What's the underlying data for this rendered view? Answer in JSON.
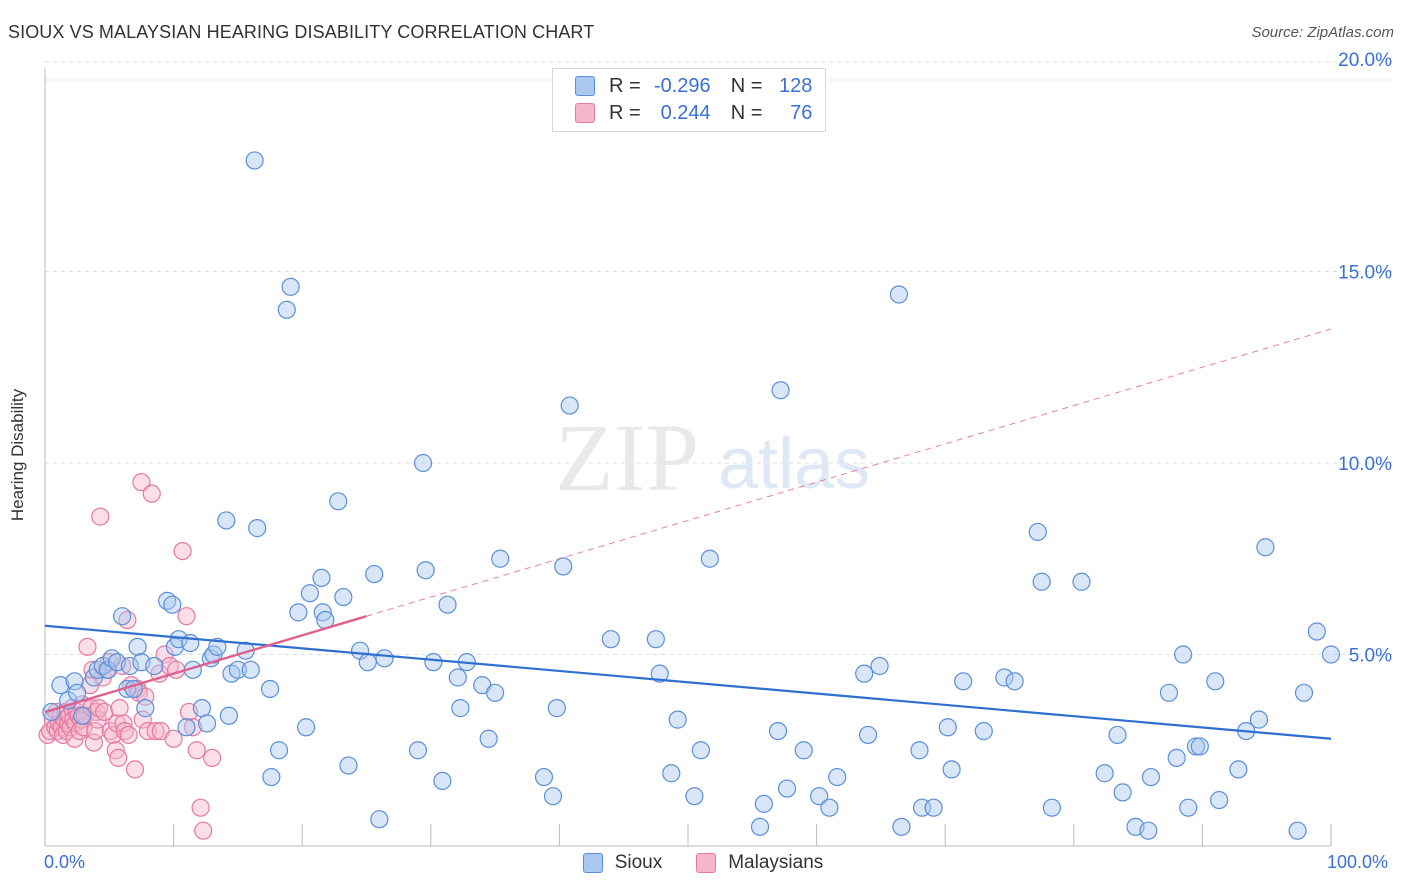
{
  "header": {
    "title": "SIOUX VS MALAYSIAN HEARING DISABILITY CORRELATION CHART",
    "source": "Source: ZipAtlas.com"
  },
  "watermark": {
    "zip": "ZIP",
    "atlas": "atlas"
  },
  "legend_top": {
    "rows": [
      {
        "r_label": "R =",
        "r_value": "-0.296",
        "n_label": "N =",
        "n_value": "128"
      },
      {
        "r_label": "R =",
        "r_value": "0.244",
        "n_label": "N =",
        "n_value": "76"
      }
    ]
  },
  "x_axis": {
    "min_label": "0.0%",
    "max_label": "100.0%"
  },
  "colors": {
    "sioux_fill": "#a9c8ef",
    "sioux_stroke": "#5b8fd9",
    "sioux_line": "#2e6fd0",
    "malay_fill": "#f6b6cb",
    "malay_stroke": "#e57aa0",
    "malay_line": "#e0608e",
    "axis_label": "#3a6fd6",
    "grid": "#dddddd"
  },
  "chart_data": {
    "type": "scatter",
    "title": "SIOUX VS MALAYSIAN HEARING DISABILITY CORRELATION CHART",
    "xlabel": "",
    "ylabel": "Hearing Disability",
    "xlim": [
      0,
      100
    ],
    "ylim": [
      0,
      20
    ],
    "y_ticks": [
      {
        "value": 5,
        "label": "5.0%"
      },
      {
        "value": 10,
        "label": "10.0%"
      },
      {
        "value": 15,
        "label": "15.0%"
      },
      {
        "value": 20,
        "label": "20.0%"
      }
    ],
    "x_ticks": [
      0,
      10,
      20,
      30,
      40,
      50,
      60,
      70,
      80,
      90,
      100
    ],
    "grid": "horizontal dashed",
    "legend": "top-center",
    "series": [
      {
        "name": "Sioux",
        "r": -0.296,
        "n": 128,
        "trend": {
          "x0": 0,
          "y0": 5.75,
          "x1": 100,
          "y1": 2.8
        },
        "points": [
          [
            0.5,
            3.5
          ],
          [
            1.2,
            4.2
          ],
          [
            1.8,
            3.8
          ],
          [
            2.3,
            4.3
          ],
          [
            2.5,
            4.0
          ],
          [
            2.9,
            3.4
          ],
          [
            3.8,
            4.4
          ],
          [
            4.1,
            4.6
          ],
          [
            4.5,
            4.7
          ],
          [
            4.9,
            4.6
          ],
          [
            5.2,
            4.9
          ],
          [
            5.6,
            4.8
          ],
          [
            6.0,
            6.0
          ],
          [
            6.4,
            4.1
          ],
          [
            6.6,
            4.7
          ],
          [
            6.9,
            4.1
          ],
          [
            7.2,
            5.2
          ],
          [
            7.5,
            4.8
          ],
          [
            7.8,
            3.6
          ],
          [
            8.5,
            4.7
          ],
          [
            9.5,
            6.4
          ],
          [
            9.9,
            6.3
          ],
          [
            10.1,
            5.2
          ],
          [
            10.4,
            5.4
          ],
          [
            11.0,
            3.1
          ],
          [
            11.3,
            5.3
          ],
          [
            11.5,
            4.6
          ],
          [
            12.2,
            3.6
          ],
          [
            12.6,
            3.2
          ],
          [
            12.9,
            4.9
          ],
          [
            13.1,
            5.0
          ],
          [
            13.4,
            5.2
          ],
          [
            14.1,
            8.5
          ],
          [
            14.3,
            3.4
          ],
          [
            14.5,
            4.5
          ],
          [
            15.0,
            4.6
          ],
          [
            15.6,
            5.1
          ],
          [
            16.0,
            4.6
          ],
          [
            16.3,
            17.9
          ],
          [
            16.5,
            8.3
          ],
          [
            17.5,
            4.1
          ],
          [
            17.6,
            1.8
          ],
          [
            18.2,
            2.5
          ],
          [
            18.8,
            14.0
          ],
          [
            19.1,
            14.6
          ],
          [
            19.7,
            6.1
          ],
          [
            20.3,
            3.1
          ],
          [
            20.6,
            6.6
          ],
          [
            21.5,
            7.0
          ],
          [
            21.6,
            6.1
          ],
          [
            21.8,
            5.9
          ],
          [
            22.8,
            9.0
          ],
          [
            23.2,
            6.5
          ],
          [
            23.6,
            2.1
          ],
          [
            24.5,
            5.1
          ],
          [
            25.1,
            4.8
          ],
          [
            25.6,
            7.1
          ],
          [
            26.0,
            0.7
          ],
          [
            26.4,
            4.9
          ],
          [
            29.0,
            2.5
          ],
          [
            29.4,
            10.0
          ],
          [
            29.6,
            7.2
          ],
          [
            30.2,
            4.8
          ],
          [
            30.9,
            1.7
          ],
          [
            31.3,
            6.3
          ],
          [
            32.1,
            4.4
          ],
          [
            32.3,
            3.6
          ],
          [
            32.8,
            4.8
          ],
          [
            34.0,
            4.2
          ],
          [
            34.5,
            2.8
          ],
          [
            35.0,
            4.0
          ],
          [
            35.4,
            7.5
          ],
          [
            38.8,
            1.8
          ],
          [
            39.5,
            1.3
          ],
          [
            39.8,
            3.6
          ],
          [
            40.3,
            7.3
          ],
          [
            40.8,
            11.5
          ],
          [
            44.0,
            5.4
          ],
          [
            47.5,
            5.4
          ],
          [
            47.8,
            4.5
          ],
          [
            48.7,
            1.9
          ],
          [
            49.2,
            3.3
          ],
          [
            50.5,
            1.3
          ],
          [
            51.0,
            2.5
          ],
          [
            51.7,
            7.5
          ],
          [
            55.6,
            0.5
          ],
          [
            55.9,
            1.1
          ],
          [
            57.0,
            3.0
          ],
          [
            57.2,
            11.9
          ],
          [
            57.7,
            1.5
          ],
          [
            59.0,
            2.5
          ],
          [
            60.2,
            1.3
          ],
          [
            61.0,
            1.0
          ],
          [
            61.6,
            1.8
          ],
          [
            63.7,
            4.5
          ],
          [
            64.0,
            2.9
          ],
          [
            64.9,
            4.7
          ],
          [
            66.4,
            14.4
          ],
          [
            66.6,
            0.5
          ],
          [
            68.0,
            2.5
          ],
          [
            68.2,
            1.0
          ],
          [
            69.1,
            1.0
          ],
          [
            70.2,
            3.1
          ],
          [
            70.5,
            2.0
          ],
          [
            71.4,
            4.3
          ],
          [
            73.0,
            3.0
          ],
          [
            74.6,
            4.4
          ],
          [
            75.4,
            4.3
          ],
          [
            77.2,
            8.2
          ],
          [
            77.5,
            6.9
          ],
          [
            78.3,
            1.0
          ],
          [
            80.6,
            6.9
          ],
          [
            82.4,
            1.9
          ],
          [
            83.4,
            2.9
          ],
          [
            83.8,
            1.4
          ],
          [
            84.8,
            0.5
          ],
          [
            85.8,
            0.4
          ],
          [
            86.0,
            1.8
          ],
          [
            87.4,
            4.0
          ],
          [
            88.0,
            2.3
          ],
          [
            88.5,
            5.0
          ],
          [
            88.9,
            1.0
          ],
          [
            89.5,
            2.6
          ],
          [
            89.8,
            2.6
          ],
          [
            91.0,
            4.3
          ],
          [
            91.3,
            1.2
          ],
          [
            92.8,
            2.0
          ],
          [
            93.4,
            3.0
          ],
          [
            94.4,
            3.3
          ],
          [
            94.9,
            7.8
          ],
          [
            97.4,
            0.4
          ],
          [
            97.9,
            4.0
          ],
          [
            98.9,
            5.6
          ],
          [
            100.0,
            5.0
          ]
        ]
      },
      {
        "name": "Malaysians",
        "r": 0.244,
        "n": 76,
        "trend": {
          "x0": 0,
          "y0": 3.5,
          "x1": 25,
          "y1": 6.0,
          "dashed_to": {
            "x1": 100,
            "y1": 13.5
          }
        },
        "points": [
          [
            0.2,
            2.9
          ],
          [
            0.4,
            3.0
          ],
          [
            0.6,
            3.3
          ],
          [
            0.8,
            3.1
          ],
          [
            0.9,
            3.5
          ],
          [
            1.0,
            3.0
          ],
          [
            1.1,
            3.2
          ],
          [
            1.2,
            3.4
          ],
          [
            1.3,
            3.1
          ],
          [
            1.4,
            2.9
          ],
          [
            1.5,
            3.3
          ],
          [
            1.6,
            3.5
          ],
          [
            1.7,
            3.0
          ],
          [
            1.8,
            3.2
          ],
          [
            1.9,
            3.4
          ],
          [
            2.0,
            3.1
          ],
          [
            2.1,
            3.6
          ],
          [
            2.2,
            3.3
          ],
          [
            2.3,
            2.8
          ],
          [
            2.4,
            3.2
          ],
          [
            2.5,
            3.5
          ],
          [
            2.6,
            3.4
          ],
          [
            2.7,
            3.0
          ],
          [
            2.8,
            3.3
          ],
          [
            2.9,
            3.7
          ],
          [
            3.0,
            3.1
          ],
          [
            3.1,
            3.4
          ],
          [
            3.3,
            5.2
          ],
          [
            3.5,
            4.2
          ],
          [
            3.6,
            3.6
          ],
          [
            3.7,
            4.6
          ],
          [
            3.8,
            2.7
          ],
          [
            3.9,
            3.0
          ],
          [
            4.0,
            3.5
          ],
          [
            4.1,
            3.3
          ],
          [
            4.2,
            3.6
          ],
          [
            4.3,
            8.6
          ],
          [
            4.5,
            4.4
          ],
          [
            4.6,
            3.5
          ],
          [
            4.8,
            4.6
          ],
          [
            5.0,
            4.8
          ],
          [
            5.1,
            3.0
          ],
          [
            5.3,
            2.9
          ],
          [
            5.5,
            2.5
          ],
          [
            5.6,
            3.2
          ],
          [
            5.7,
            2.3
          ],
          [
            5.8,
            3.6
          ],
          [
            6.0,
            4.7
          ],
          [
            6.1,
            3.2
          ],
          [
            6.2,
            3.0
          ],
          [
            6.4,
            5.9
          ],
          [
            6.5,
            2.9
          ],
          [
            6.7,
            4.2
          ],
          [
            7.0,
            2.0
          ],
          [
            7.2,
            4.1
          ],
          [
            7.3,
            4.0
          ],
          [
            7.5,
            9.5
          ],
          [
            7.6,
            3.3
          ],
          [
            7.8,
            3.9
          ],
          [
            8.0,
            3.0
          ],
          [
            8.3,
            9.2
          ],
          [
            8.6,
            3.0
          ],
          [
            8.9,
            4.5
          ],
          [
            9.0,
            3.0
          ],
          [
            9.3,
            5.0
          ],
          [
            9.7,
            4.7
          ],
          [
            10.0,
            2.8
          ],
          [
            10.2,
            4.6
          ],
          [
            10.7,
            7.7
          ],
          [
            11.0,
            6.0
          ],
          [
            11.2,
            3.5
          ],
          [
            11.5,
            3.1
          ],
          [
            11.8,
            2.5
          ],
          [
            12.1,
            1.0
          ],
          [
            12.3,
            0.4
          ],
          [
            13.0,
            2.3
          ]
        ]
      }
    ]
  }
}
